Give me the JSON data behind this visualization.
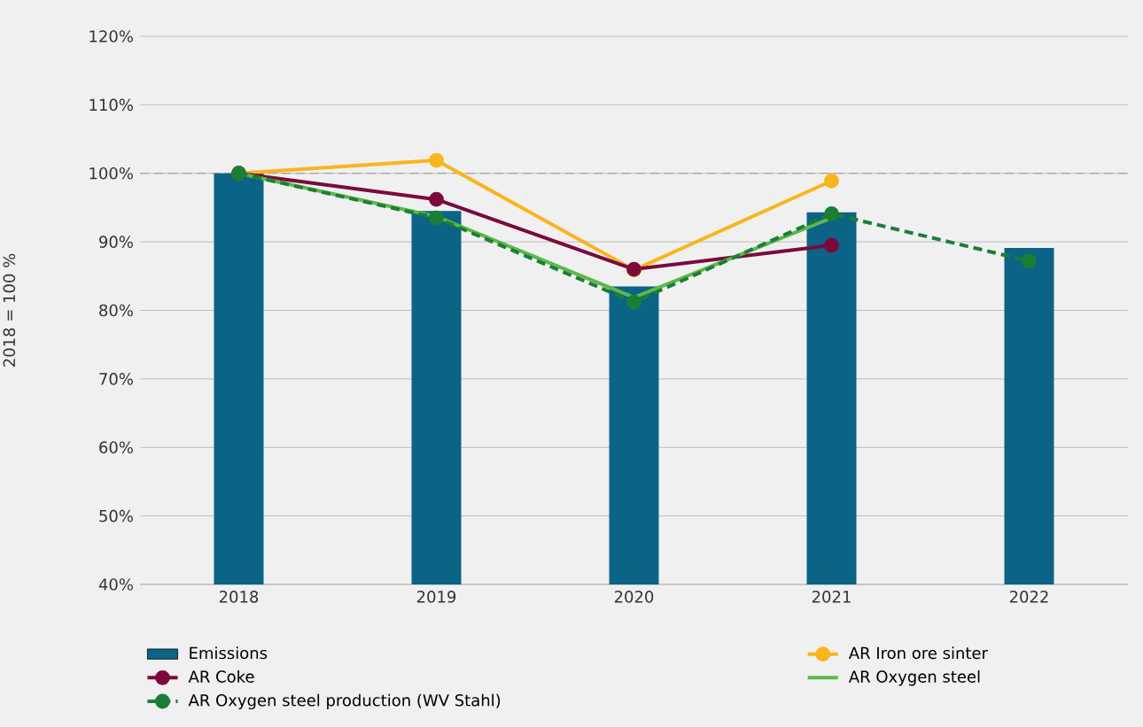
{
  "chart_data": {
    "type": "bar",
    "ylabel": "2018 = 100 %",
    "categories": [
      "2018",
      "2019",
      "2020",
      "2021",
      "2022"
    ],
    "series": [
      {
        "name": "Emissions",
        "color": "#0b6385",
        "values": [
          100,
          94.5,
          83.5,
          94.3,
          89.1
        ]
      },
      {
        "name": "AR Iron ore sinter",
        "type": "line",
        "color": "#f9b51d",
        "marker": "circle",
        "values": [
          100,
          101.9,
          85.9,
          98.9,
          null
        ]
      },
      {
        "name": "AR Coke",
        "type": "line",
        "color": "#7a0a3c",
        "marker": "circle",
        "values": [
          100,
          96.2,
          86.0,
          89.5,
          null
        ]
      },
      {
        "name": "AR Oxygen steel",
        "type": "line",
        "color": "#5db84a",
        "marker": "none",
        "values": [
          100,
          93.7,
          81.9,
          93.5,
          null
        ]
      },
      {
        "name": "AR Oxygen steel production (WV Stahl)",
        "type": "line",
        "color": "#1a7f35",
        "marker": "circle",
        "line_style": "dashed",
        "values": [
          100,
          93.5,
          81.2,
          94.1,
          87.2
        ]
      }
    ],
    "ylim": [
      40,
      120
    ],
    "yticks": [
      {
        "value": 40,
        "label": "40%"
      },
      {
        "value": 50,
        "label": "50%"
      },
      {
        "value": 60,
        "label": "60%"
      },
      {
        "value": 70,
        "label": "70%"
      },
      {
        "value": 80,
        "label": "80%"
      },
      {
        "value": 90,
        "label": "90%"
      },
      {
        "value": 100,
        "label": "100%"
      },
      {
        "value": 110,
        "label": "110%"
      },
      {
        "value": 120,
        "label": "120%"
      }
    ],
    "ref_lines": [
      {
        "axis": "y",
        "value": 100,
        "color": "#9a9a9a",
        "line_style": "dashed"
      }
    ],
    "grid": "y",
    "legend": "bottom"
  }
}
